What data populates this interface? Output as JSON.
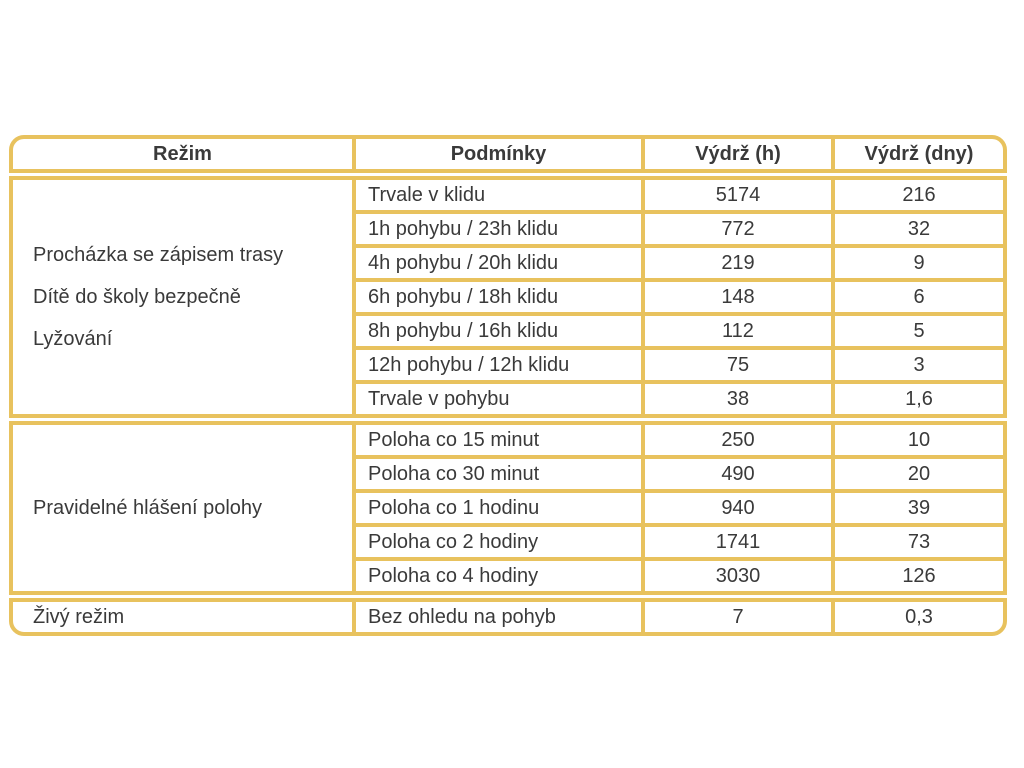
{
  "table": {
    "border_color": "#E8C25E",
    "text_color": "#3A3A3A",
    "headers": {
      "mode": "Režim",
      "conditions": "Podmínky",
      "hours": "Výdrž (h)",
      "days": "Výdrž (dny)"
    },
    "groups": [
      {
        "mode_lines": [
          "Procházka se zápisem trasy",
          "Dítě do školy bezpečně",
          "Lyžování"
        ],
        "rows": [
          {
            "condition": "Trvale v klidu",
            "hours": "5174",
            "days": "216"
          },
          {
            "condition": "1h pohybu / 23h klidu",
            "hours": "772",
            "days": "32"
          },
          {
            "condition": "4h pohybu / 20h klidu",
            "hours": "219",
            "days": "9"
          },
          {
            "condition": "6h pohybu / 18h klidu",
            "hours": "148",
            "days": "6"
          },
          {
            "condition": "8h pohybu / 16h klidu",
            "hours": "112",
            "days": "5"
          },
          {
            "condition": "12h pohybu / 12h klidu",
            "hours": "75",
            "days": "3"
          },
          {
            "condition": "Trvale v pohybu",
            "hours": "38",
            "days": "1,6"
          }
        ]
      },
      {
        "mode_lines": [
          "Pravidelné hlášení polohy"
        ],
        "rows": [
          {
            "condition": "Poloha co 15 minut",
            "hours": "250",
            "days": "10"
          },
          {
            "condition": "Poloha co 30 minut",
            "hours": "490",
            "days": "20"
          },
          {
            "condition": "Poloha co 1 hodinu",
            "hours": "940",
            "days": "39"
          },
          {
            "condition": "Poloha co 2 hodiny",
            "hours": "1741",
            "days": "73"
          },
          {
            "condition": "Poloha co 4 hodiny",
            "hours": "3030",
            "days": "126"
          }
        ]
      },
      {
        "mode_lines": [
          "Živý režim"
        ],
        "rows": [
          {
            "condition": "Bez ohledu na pohyb",
            "hours": "7",
            "days": "0,3"
          }
        ]
      }
    ]
  },
  "chart_data": {
    "type": "table",
    "title": "",
    "columns": [
      "Režim",
      "Podmínky",
      "Výdrž (h)",
      "Výdrž (dny)"
    ],
    "rows": [
      [
        "Procházka se zápisem trasy / Dítě do školy bezpečně / Lyžování",
        "Trvale v klidu",
        5174,
        216
      ],
      [
        "",
        "1h pohybu / 23h klidu",
        772,
        32
      ],
      [
        "",
        "4h pohybu / 20h klidu",
        219,
        9
      ],
      [
        "",
        "6h pohybu / 18h klidu",
        148,
        6
      ],
      [
        "",
        "8h pohybu / 16h klidu",
        112,
        5
      ],
      [
        "",
        "12h pohybu / 12h klidu",
        75,
        3
      ],
      [
        "",
        "Trvale v pohybu",
        38,
        "1,6"
      ],
      [
        "Pravidelné hlášení polohy",
        "Poloha co 15 minut",
        250,
        10
      ],
      [
        "",
        "Poloha co 30 minut",
        490,
        20
      ],
      [
        "",
        "Poloha co 1 hodinu",
        940,
        39
      ],
      [
        "",
        "Poloha co 2 hodiny",
        1741,
        73
      ],
      [
        "",
        "Poloha co 4 hodiny",
        3030,
        126
      ],
      [
        "Živý režim",
        "Bez ohledu na pohyb",
        7,
        "0,3"
      ]
    ],
    "layout": "first column spans row groups of 7, 5 and 1 rows; gold grid borders; rounded outer corners; numeric columns centered"
  }
}
